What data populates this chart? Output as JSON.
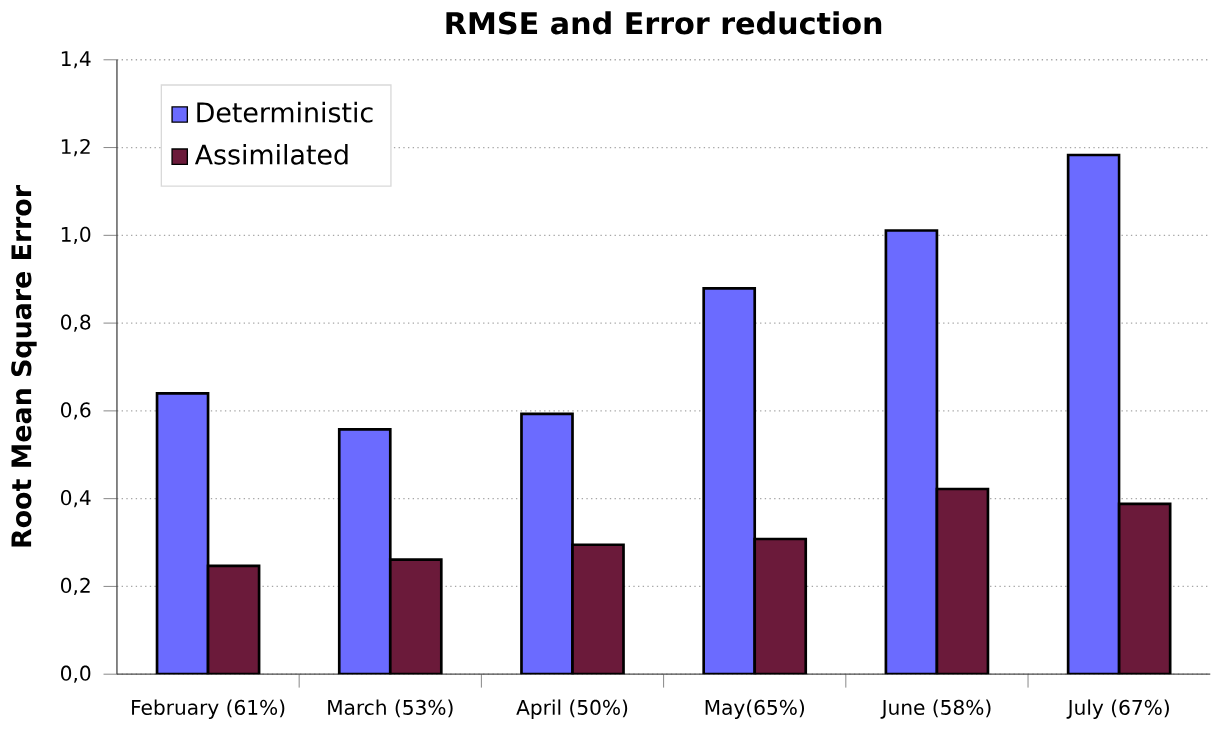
{
  "chart_data": {
    "type": "bar",
    "title": "RMSE and Error reduction",
    "ylabel": "Root Mean Square Error",
    "categories": [
      "February (61%)",
      "March (53%)",
      "April (50%)",
      "May(65%)",
      "June (58%)",
      "July (67%)"
    ],
    "series": [
      {
        "name": "Deterministic",
        "color": "#6b6bff",
        "values": [
          0.64,
          0.558,
          0.593,
          0.879,
          1.011,
          1.183
        ]
      },
      {
        "name": "Assimilated",
        "color": "#6b1a3a",
        "values": [
          0.247,
          0.261,
          0.295,
          0.308,
          0.422,
          0.388
        ]
      }
    ],
    "ylim": [
      0,
      1.4
    ],
    "yticks": [
      {
        "value": 0,
        "label": "0,0"
      },
      {
        "value": 0.2,
        "label": "0,2"
      },
      {
        "value": 0.4,
        "label": "0,4"
      },
      {
        "value": 0.6,
        "label": "0,6"
      },
      {
        "value": 0.8,
        "label": "0,8"
      },
      {
        "value": 1.0,
        "label": "1,0"
      },
      {
        "value": 1.2,
        "label": "1,2"
      },
      {
        "value": 1.4,
        "label": "1,4"
      }
    ],
    "grid": "y",
    "legend": "top left"
  }
}
